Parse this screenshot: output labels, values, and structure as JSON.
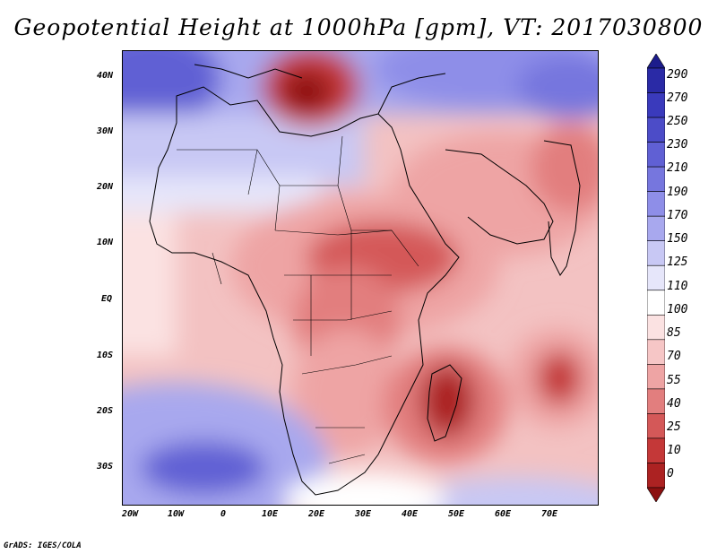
{
  "title": "Geopotential Height at 1000hPa [gpm], VT: 2017030800",
  "credit": "GrADS: IGES/COLA",
  "map": {
    "variable": "Geopotential Height at 1000hPa",
    "units": "gpm",
    "valid_time": "2017030800",
    "region": "Africa and surrounding oceans",
    "lon_range": [
      -22,
      79
    ],
    "lat_range": [
      -37,
      45
    ],
    "lat_ticks": [
      "40N",
      "30N",
      "20N",
      "10N",
      "EQ",
      "10S",
      "20S",
      "30S"
    ],
    "lon_ticks": [
      "20W",
      "10W",
      "0",
      "10E",
      "20E",
      "30E",
      "40E",
      "50E",
      "60E",
      "70E"
    ]
  },
  "colorbar": {
    "labels": [
      "290",
      "270",
      "250",
      "230",
      "210",
      "190",
      "170",
      "150",
      "125",
      "110",
      "100",
      "85",
      "70",
      "55",
      "40",
      "25",
      "10",
      "0"
    ],
    "colors": [
      "#1c1c8c",
      "#2a2aa6",
      "#3a3abc",
      "#4c4cc8",
      "#6060d4",
      "#7676de",
      "#8e8ee8",
      "#a8a8ee",
      "#c8c8f4",
      "#e6e6fa",
      "#ffffff",
      "#fbe2e2",
      "#f6c6c6",
      "#eea4a4",
      "#e27e7e",
      "#d45858",
      "#c43838",
      "#ac2222",
      "#8c1010"
    ]
  }
}
